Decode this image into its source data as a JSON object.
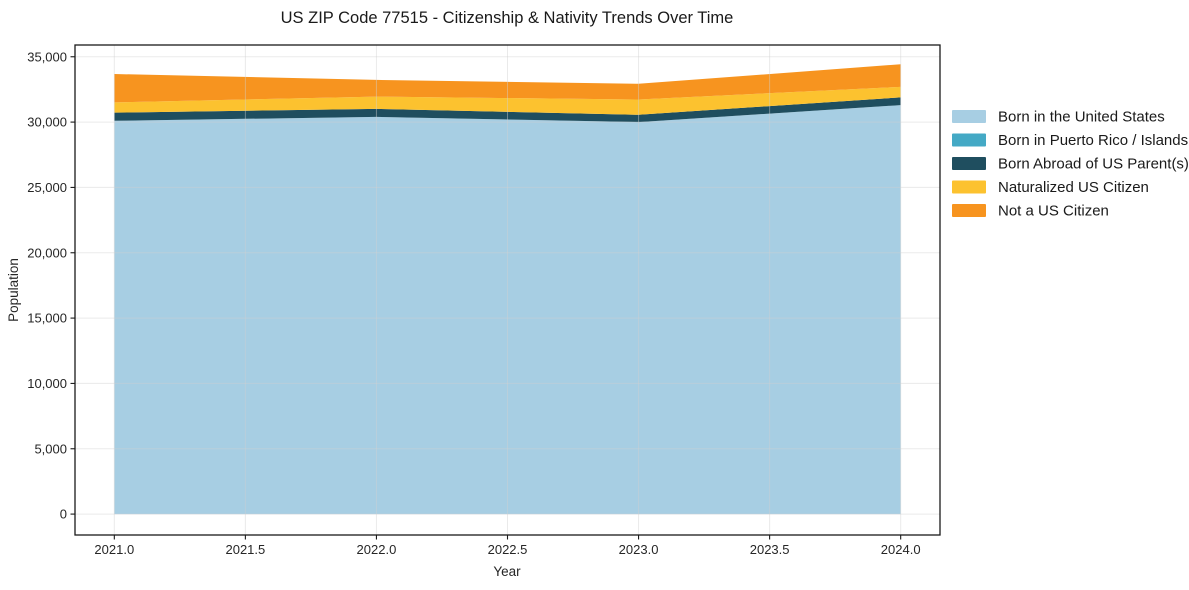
{
  "chart_data": {
    "type": "area",
    "stacked": true,
    "title": "US ZIP Code 77515 - Citizenship & Nativity Trends Over Time",
    "xlabel": "Year",
    "ylabel": "Population",
    "x": [
      2021,
      2022,
      2023,
      2024
    ],
    "series": [
      {
        "name": "Born in the United States",
        "color": "#a7cee3",
        "values": [
          30100,
          30400,
          30000,
          31300
        ]
      },
      {
        "name": "Born in Puerto Rico / Islands",
        "color": "#44a9c5",
        "values": [
          0,
          0,
          0,
          0
        ]
      },
      {
        "name": "Born Abroad of US Parent(s)",
        "color": "#1f4e5f",
        "values": [
          620,
          610,
          560,
          590
        ]
      },
      {
        "name": "Naturalized US Citizen",
        "color": "#fcc22f",
        "values": [
          790,
          940,
          1170,
          810
        ]
      },
      {
        "name": "Not a US Citizen",
        "color": "#f7941f",
        "values": [
          2170,
          1280,
          1200,
          1730
        ]
      }
    ],
    "stacked_totals": [
      33680,
      33230,
      32930,
      34430
    ],
    "x_ticks": [
      2021.0,
      2021.5,
      2022.0,
      2022.5,
      2023.0,
      2023.5,
      2024.0
    ],
    "x_tick_labels": [
      "2021.0",
      "2021.5",
      "2022.0",
      "2022.5",
      "2023.0",
      "2023.5",
      "2024.0"
    ],
    "y_ticks": [
      0,
      5000,
      10000,
      15000,
      20000,
      25000,
      30000,
      35000
    ],
    "y_tick_labels": [
      "0",
      "5,000",
      "10,000",
      "15,000",
      "20,000",
      "25,000",
      "30,000",
      "35,000"
    ],
    "xlim": [
      2020.85,
      2024.15
    ],
    "ylim": [
      -1600,
      35900
    ],
    "grid": true,
    "grid_color": "#d0d0d0",
    "legend_position": "right",
    "background_color": "#ffffff",
    "frame_color": "#1a1a1a"
  }
}
